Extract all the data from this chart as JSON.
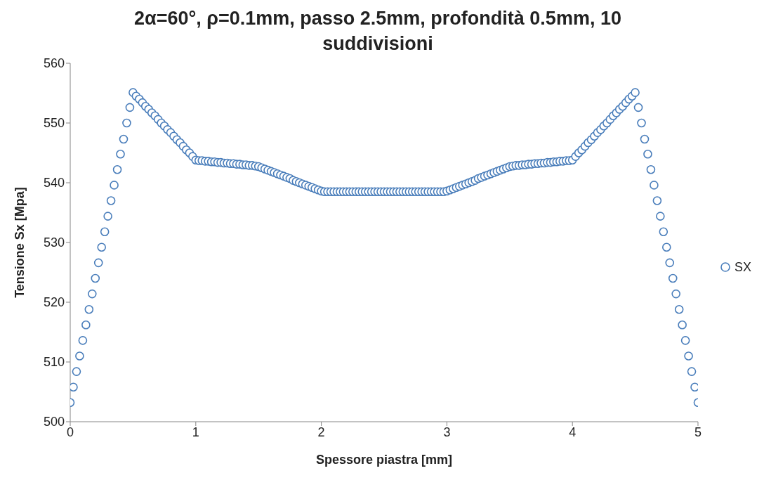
{
  "chart_data": {
    "type": "scatter",
    "title": "2α=60°, ρ=0.1mm, passo 2.5mm, profondità 0.5mm, 10 suddivisioni",
    "xlabel": "Spessore piastra [mm]",
    "ylabel": "Tensione Sx [Mpa]",
    "x": [
      0,
      0.025,
      0.05,
      0.075,
      0.1,
      0.125,
      0.15,
      0.175,
      0.2,
      0.225,
      0.25,
      0.275,
      0.3,
      0.325,
      0.35,
      0.375,
      0.4,
      0.425,
      0.45,
      0.475,
      0.5,
      0.525,
      0.55,
      0.575,
      0.6,
      0.625,
      0.65,
      0.675,
      0.7,
      0.725,
      0.75,
      0.775,
      0.8,
      0.825,
      0.85,
      0.875,
      0.9,
      0.925,
      0.95,
      0.975,
      1,
      1.025,
      1.05,
      1.075,
      1.1,
      1.125,
      1.15,
      1.175,
      1.2,
      1.225,
      1.25,
      1.275,
      1.3,
      1.325,
      1.35,
      1.375,
      1.4,
      1.425,
      1.45,
      1.475,
      1.5,
      1.525,
      1.55,
      1.575,
      1.6,
      1.625,
      1.65,
      1.675,
      1.7,
      1.725,
      1.75,
      1.775,
      1.8,
      1.825,
      1.85,
      1.875,
      1.9,
      1.925,
      1.95,
      1.975,
      2,
      2.025,
      2.05,
      2.075,
      2.1,
      2.125,
      2.15,
      2.175,
      2.2,
      2.225,
      2.25,
      2.275,
      2.3,
      2.325,
      2.35,
      2.375,
      2.4,
      2.425,
      2.45,
      2.475,
      2.5,
      2.525,
      2.55,
      2.575,
      2.6,
      2.625,
      2.65,
      2.675,
      2.7,
      2.725,
      2.75,
      2.775,
      2.8,
      2.825,
      2.85,
      2.875,
      2.9,
      2.925,
      2.95,
      2.975,
      3,
      3.025,
      3.05,
      3.075,
      3.1,
      3.125,
      3.15,
      3.175,
      3.2,
      3.225,
      3.25,
      3.275,
      3.3,
      3.325,
      3.35,
      3.375,
      3.4,
      3.425,
      3.45,
      3.475,
      3.5,
      3.525,
      3.55,
      3.575,
      3.6,
      3.625,
      3.65,
      3.675,
      3.7,
      3.725,
      3.75,
      3.775,
      3.8,
      3.825,
      3.85,
      3.875,
      3.9,
      3.925,
      3.95,
      3.975,
      4,
      4.025,
      4.05,
      4.075,
      4.1,
      4.125,
      4.15,
      4.175,
      4.2,
      4.225,
      4.25,
      4.275,
      4.3,
      4.325,
      4.35,
      4.375,
      4.4,
      4.425,
      4.45,
      4.475,
      4.5,
      4.525,
      4.55,
      4.575,
      4.6,
      4.625,
      4.65,
      4.675,
      4.7,
      4.725,
      4.75,
      4.775,
      4.8,
      4.825,
      4.85,
      4.875,
      4.9,
      4.925,
      4.95,
      4.975,
      5
    ],
    "series": [
      {
        "name": "SX",
        "color": "#4a7ebb",
        "values": [
          503.2,
          505.8,
          508.4,
          511.0,
          513.6,
          516.2,
          518.8,
          521.4,
          524.0,
          526.6,
          529.2,
          531.8,
          534.4,
          537.0,
          539.6,
          542.2,
          544.8,
          547.3,
          550.0,
          552.6,
          555.1,
          554.5,
          554.0,
          553.4,
          552.8,
          552.3,
          551.7,
          551.2,
          550.6,
          550.0,
          549.5,
          548.9,
          548.4,
          547.8,
          547.2,
          546.7,
          546.1,
          545.5,
          545.0,
          544.4,
          543.8,
          543.7,
          543.7,
          543.6,
          543.6,
          543.5,
          543.5,
          543.4,
          543.4,
          543.3,
          543.3,
          543.2,
          543.2,
          543.1,
          543.1,
          543.0,
          543.0,
          542.9,
          542.9,
          542.8,
          542.7,
          542.5,
          542.3,
          542.1,
          541.9,
          541.7,
          541.5,
          541.3,
          541.1,
          540.9,
          540.7,
          540.4,
          540.2,
          540.0,
          539.8,
          539.6,
          539.4,
          539.2,
          539.0,
          538.8,
          538.6,
          538.5,
          538.5,
          538.5,
          538.5,
          538.5,
          538.5,
          538.5,
          538.5,
          538.5,
          538.5,
          538.5,
          538.5,
          538.5,
          538.5,
          538.5,
          538.5,
          538.5,
          538.5,
          538.5,
          538.5,
          538.5,
          538.5,
          538.5,
          538.5,
          538.5,
          538.5,
          538.5,
          538.5,
          538.5,
          538.5,
          538.5,
          538.5,
          538.5,
          538.5,
          538.5,
          538.5,
          538.5,
          538.5,
          538.5,
          538.6,
          538.8,
          539.0,
          539.2,
          539.4,
          539.6,
          539.8,
          540.0,
          540.2,
          540.4,
          540.7,
          540.9,
          541.1,
          541.3,
          541.5,
          541.7,
          541.9,
          542.1,
          542.3,
          542.5,
          542.7,
          542.8,
          542.9,
          542.9,
          543.0,
          543.0,
          543.1,
          543.1,
          543.2,
          543.2,
          543.3,
          543.3,
          543.4,
          543.4,
          543.5,
          543.5,
          543.6,
          543.6,
          543.7,
          543.7,
          543.8,
          544.4,
          545.0,
          545.5,
          546.1,
          546.7,
          547.2,
          547.8,
          548.4,
          548.9,
          549.5,
          550.0,
          550.6,
          551.2,
          551.7,
          552.3,
          552.8,
          553.4,
          554.0,
          554.5,
          555.1,
          552.6,
          550.0,
          547.3,
          544.8,
          542.2,
          539.6,
          537.0,
          534.4,
          531.8,
          529.2,
          526.6,
          524.0,
          521.4,
          518.8,
          516.2,
          513.6,
          511.0,
          508.4,
          505.8,
          503.2
        ]
      }
    ],
    "xlim": [
      0,
      5
    ],
    "xticks": [
      0,
      1,
      2,
      3,
      4,
      5
    ],
    "ylim": [
      500,
      560
    ],
    "yticks": [
      500,
      510,
      520,
      530,
      540,
      550,
      560
    ],
    "grid": false,
    "legend": "right",
    "marker": "circle"
  }
}
